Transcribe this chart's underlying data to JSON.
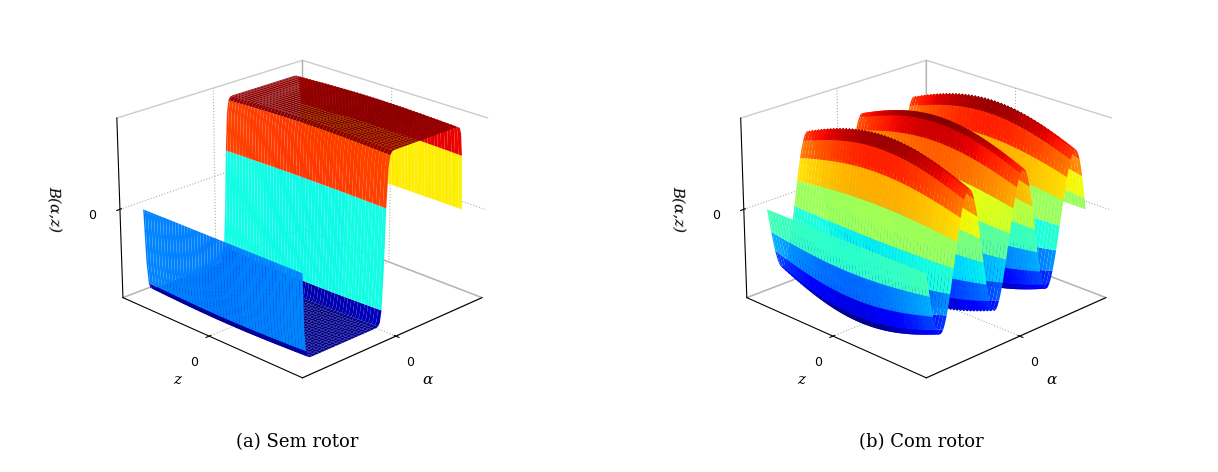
{
  "title_left": "(a) Sem rotor",
  "title_right": "(b) Com rotor",
  "zlabel": "B(α,z)",
  "ylabel": "z",
  "xlabel": "α",
  "background_color": "#ffffff",
  "grid_color": "#b0b0b0",
  "elev": 22,
  "azim": -135,
  "n_points": 100
}
